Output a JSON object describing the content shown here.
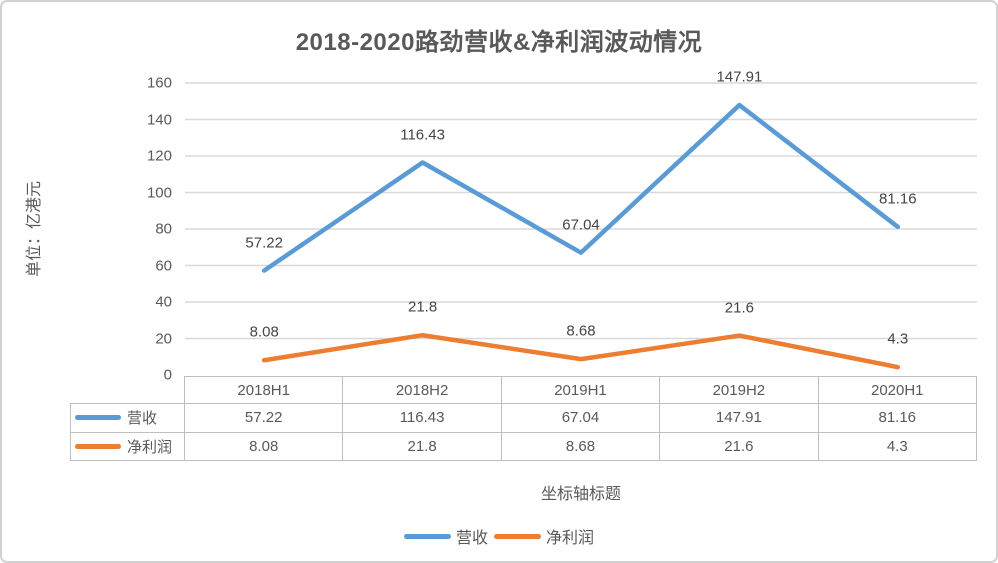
{
  "chart_data": {
    "type": "line",
    "title": "2018-2020路劲营收&净利润波动情况",
    "unit_label": "单位：亿港元",
    "xlabel": "坐标轴标题",
    "ylabel": "",
    "categories": [
      "2018H1",
      "2018H2",
      "2019H1",
      "2019H2",
      "2020H1"
    ],
    "series": [
      {
        "name": "营收",
        "color": "#5B9BD5",
        "values": [
          57.22,
          116.43,
          67.04,
          147.91,
          81.16
        ]
      },
      {
        "name": "净利润",
        "color": "#ED7D31",
        "values": [
          8.08,
          21.8,
          8.68,
          21.6,
          4.3
        ]
      }
    ],
    "ylim": [
      0,
      160
    ],
    "ytick_step": 20,
    "yticks": [
      0,
      20,
      40,
      60,
      80,
      100,
      120,
      140,
      160
    ],
    "grid": true,
    "gridline_color": "#d9d9d9",
    "table_border_color": "#bfbfbf",
    "legend_position": "bottom",
    "data_table": true,
    "data_labels": true
  }
}
